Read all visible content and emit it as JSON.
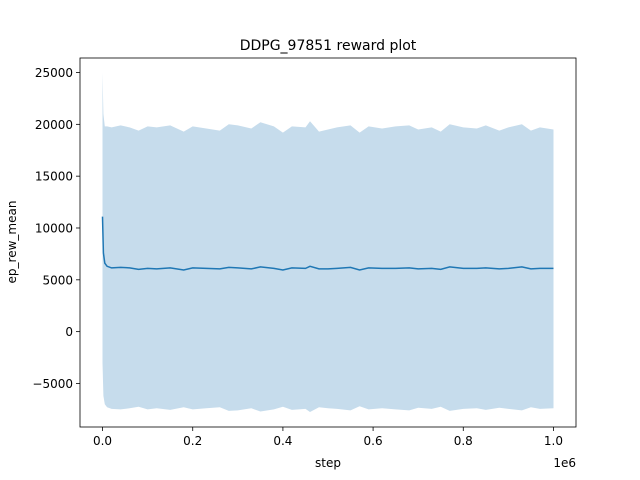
{
  "chart_data": {
    "type": "line",
    "title": "DDPG_97851 reward plot",
    "xlabel": "step",
    "ylabel": "ep_rew_mean",
    "x_offset_label": "1e6",
    "xlim": [
      -0.05,
      1.05
    ],
    "ylim": [
      -9200,
      26400
    ],
    "xticks": [
      0.0,
      0.2,
      0.4,
      0.6,
      0.8,
      1.0
    ],
    "xtick_labels": [
      "0.0",
      "0.2",
      "0.4",
      "0.6",
      "0.8",
      "1.0"
    ],
    "yticks": [
      -5000,
      0,
      5000,
      10000,
      15000,
      20000,
      25000
    ],
    "ytick_labels": [
      "−5000",
      "0",
      "5000",
      "10000",
      "15000",
      "20000",
      "25000"
    ],
    "grid": false,
    "colors": {
      "line": "#1f77b4",
      "band": "#c6dcec",
      "axes": "#000000"
    },
    "series": [
      {
        "x": [
          0.0,
          0.002,
          0.005,
          0.01,
          0.02,
          0.04,
          0.06,
          0.08,
          0.1,
          0.12,
          0.15,
          0.18,
          0.2,
          0.23,
          0.26,
          0.28,
          0.3,
          0.33,
          0.35,
          0.38,
          0.4,
          0.42,
          0.45,
          0.46,
          0.48,
          0.5,
          0.52,
          0.55,
          0.57,
          0.59,
          0.62,
          0.65,
          0.68,
          0.7,
          0.73,
          0.75,
          0.77,
          0.8,
          0.83,
          0.85,
          0.88,
          0.9,
          0.93,
          0.95,
          0.97,
          1.0
        ],
        "mean": [
          11100,
          7600,
          6600,
          6300,
          6150,
          6200,
          6150,
          6000,
          6100,
          6050,
          6150,
          5950,
          6150,
          6100,
          6050,
          6200,
          6150,
          6050,
          6250,
          6100,
          5950,
          6150,
          6100,
          6300,
          6050,
          6050,
          6100,
          6200,
          5950,
          6150,
          6100,
          6100,
          6150,
          6050,
          6100,
          6000,
          6250,
          6100,
          6100,
          6150,
          6050,
          6100,
          6250,
          6050,
          6100,
          6100
        ],
        "upper": [
          25000,
          21000,
          19800,
          19800,
          19700,
          19900,
          19700,
          19400,
          19800,
          19700,
          19900,
          19300,
          19800,
          19600,
          19400,
          20000,
          19900,
          19600,
          20200,
          19800,
          19200,
          19800,
          19700,
          20300,
          19300,
          19500,
          19700,
          19900,
          19200,
          19800,
          19600,
          19800,
          19900,
          19500,
          19700,
          19300,
          20000,
          19700,
          19600,
          19900,
          19400,
          19700,
          20000,
          19400,
          19700,
          19500
        ],
        "lower": [
          -3000,
          -6200,
          -7000,
          -7300,
          -7450,
          -7500,
          -7400,
          -7250,
          -7500,
          -7400,
          -7550,
          -7300,
          -7500,
          -7400,
          -7300,
          -7650,
          -7600,
          -7400,
          -7700,
          -7500,
          -7250,
          -7550,
          -7450,
          -7750,
          -7300,
          -7400,
          -7450,
          -7600,
          -7200,
          -7500,
          -7400,
          -7500,
          -7600,
          -7350,
          -7450,
          -7250,
          -7650,
          -7450,
          -7400,
          -7550,
          -7350,
          -7450,
          -7600,
          -7300,
          -7450,
          -7400
        ]
      }
    ]
  }
}
